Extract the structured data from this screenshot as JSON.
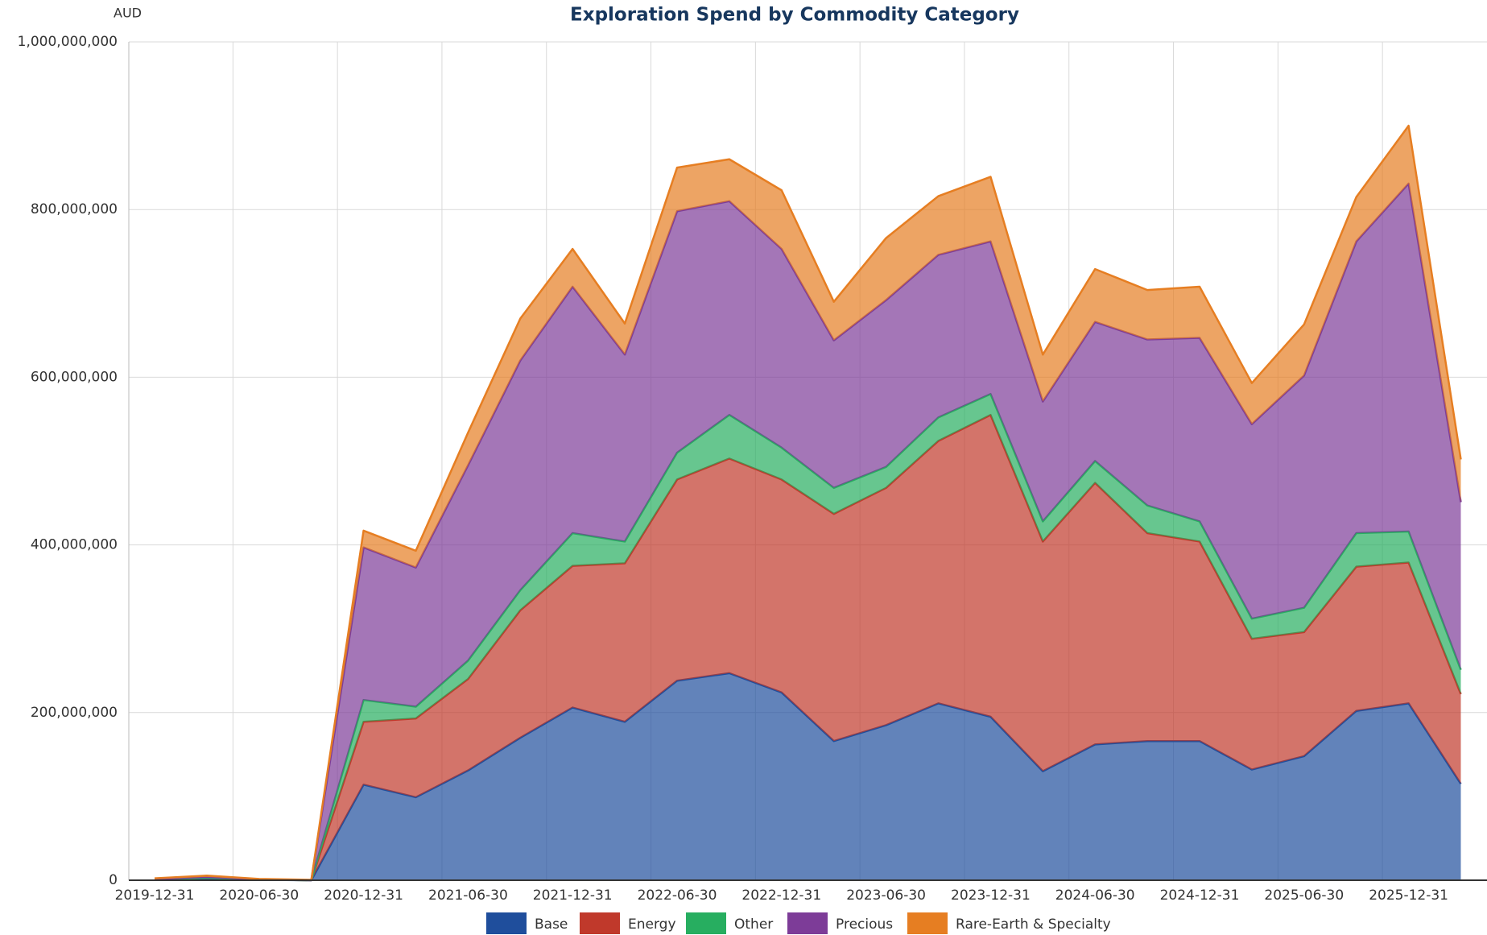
{
  "chart_data": {
    "type": "stacked_area",
    "title": "Exploration Spend by Commodity Category",
    "y_label": "AUD",
    "categories": [
      "2019-12-31",
      null,
      "2020-06-30",
      null,
      "2020-12-31",
      null,
      "2021-06-30",
      null,
      "2021-12-31",
      null,
      "2022-06-30",
      null,
      "2022-12-31",
      null,
      "2023-06-30",
      null,
      "2023-12-31",
      null,
      "2024-06-30",
      null,
      "2024-12-31",
      null,
      "2025-06-30",
      null,
      "2025-12-31",
      null
    ],
    "series": [
      {
        "name": "Base",
        "color": "#1f4e9c",
        "values": [
          500000,
          2000000,
          500000,
          0,
          114000000,
          99000000,
          131000000,
          170000000,
          206000000,
          189000000,
          238000000,
          247000000,
          224000000,
          166000000,
          185000000,
          211000000,
          195000000,
          130000000,
          162000000,
          166000000,
          166000000,
          132000000,
          148000000,
          202000000,
          211000000,
          115000000
        ]
      },
      {
        "name": "Energy",
        "color": "#c0392b",
        "values": [
          300000,
          1000000,
          300000,
          0,
          75000000,
          94000000,
          109000000,
          152000000,
          169000000,
          189000000,
          240000000,
          256000000,
          254000000,
          271000000,
          283000000,
          313000000,
          360000000,
          274000000,
          312000000,
          248000000,
          238000000,
          156000000,
          148000000,
          172000000,
          168000000,
          107000000
        ]
      },
      {
        "name": "Other",
        "color": "#27ae60",
        "values": [
          0,
          0,
          0,
          0,
          26000000,
          14000000,
          22000000,
          24000000,
          39000000,
          26000000,
          32000000,
          52000000,
          38000000,
          31000000,
          25000000,
          28000000,
          25000000,
          24000000,
          26000000,
          33000000,
          24000000,
          24000000,
          29000000,
          40000000,
          37000000,
          29000000
        ]
      },
      {
        "name": "Precious",
        "color": "#7d3c98",
        "values": [
          500000,
          1000000,
          300000,
          0,
          182000000,
          166000000,
          233000000,
          274000000,
          294000000,
          223000000,
          288000000,
          255000000,
          237000000,
          176000000,
          199000000,
          194000000,
          182000000,
          143000000,
          166000000,
          198000000,
          219000000,
          232000000,
          277000000,
          348000000,
          415000000,
          200000000
        ]
      },
      {
        "name": "Rare-Earth & Specialty",
        "color": "#e67e22",
        "values": [
          1000000,
          1500000,
          500000,
          500000,
          20000000,
          20000000,
          39000000,
          50000000,
          45000000,
          37000000,
          52000000,
          50000000,
          70000000,
          46000000,
          74000000,
          70000000,
          77000000,
          56000000,
          63000000,
          59000000,
          61000000,
          49000000,
          61000000,
          53000000,
          69000000,
          51000000
        ]
      }
    ],
    "ylim": [
      0,
      1000000000
    ],
    "yticks": [
      0,
      {
        "value": 200000000,
        "label": "200,000,000"
      },
      {
        "value": 400000000,
        "label": "400,000,000"
      },
      {
        "value": 600000000,
        "label": "600,000,000"
      },
      {
        "value": 800000000,
        "label": "800,000,000"
      },
      {
        "value": 1000000000,
        "label": "1,000,000,000"
      }
    ],
    "grid": true,
    "legend": "bottom"
  }
}
